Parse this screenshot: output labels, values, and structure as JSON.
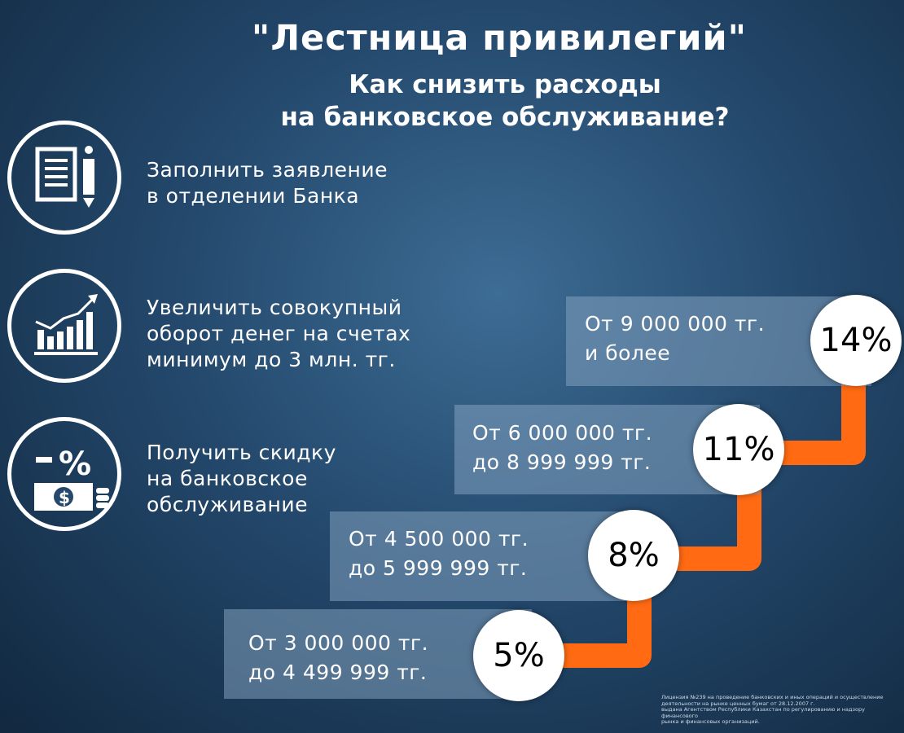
{
  "header": {
    "title": "\"Лестница привилегий\"",
    "subtitle_line1": "Как снизить расходы",
    "subtitle_line2": "на банковское обслуживание?"
  },
  "steps": [
    {
      "icon": "document-pen-icon",
      "line1": "Заполнить заявление",
      "line2": "в отделении Банка",
      "line3": ""
    },
    {
      "icon": "growth-chart-icon",
      "line1": "Увеличить совокупный",
      "line2": "оборот денег на счетах",
      "line3": "минимум до 3 млн. тг."
    },
    {
      "icon": "discount-money-icon",
      "line1": "Получить скидку",
      "line2": "на банковское",
      "line3": "обслуживание"
    }
  ],
  "tiers": [
    {
      "line1": "От 3 000 000 тг.",
      "line2": "до 4 499 999 тг.",
      "percent": "5%"
    },
    {
      "line1": "От 4 500 000 тг.",
      "line2": "до 5 999 999 тг.",
      "percent": "8%"
    },
    {
      "line1": "От 6 000 000 тг.",
      "line2": "до 8 999 999 тг.",
      "percent": "11%"
    },
    {
      "line1": "От 9 000 000 тг.",
      "line2": "и более",
      "percent": "14%"
    }
  ],
  "footer": {
    "line1": "Лицензия №239 на проведение банковских и иных операций и осуществление",
    "line2": "деятельности на рынке ценных бумаг от 28.12.2007 г.",
    "line3": "выдана Агентством Республики Казахстан по регулированию и надзору финансового",
    "line4": "рынка и финансовых организаций."
  },
  "colors": {
    "accent": "#ff6a13",
    "background": "#24496d"
  }
}
